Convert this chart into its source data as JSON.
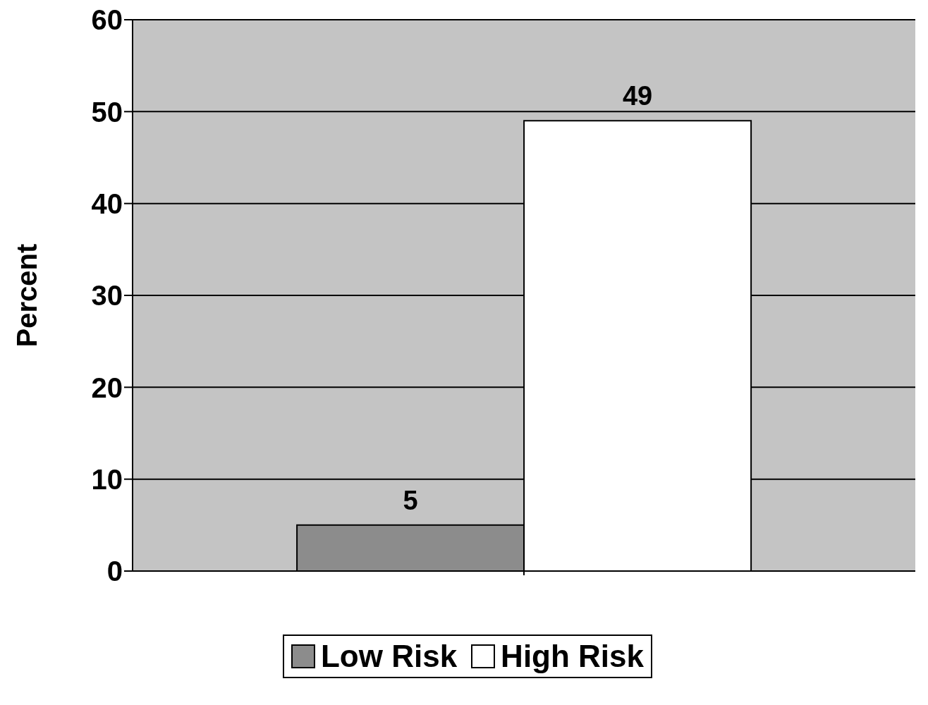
{
  "chart_data": {
    "type": "bar",
    "ylabel": "Percent",
    "categories": [
      null
    ],
    "series": [
      {
        "name": "Low Risk",
        "color": "#8c8c8c",
        "values": [
          5
        ]
      },
      {
        "name": "High Risk",
        "color": "#ffffff",
        "values": [
          49
        ]
      }
    ],
    "ylim": [
      0,
      60
    ],
    "yticks": [
      0,
      10,
      20,
      30,
      40,
      50,
      60
    ],
    "grid": "y",
    "legend": "bottom",
    "data_labels": true
  }
}
